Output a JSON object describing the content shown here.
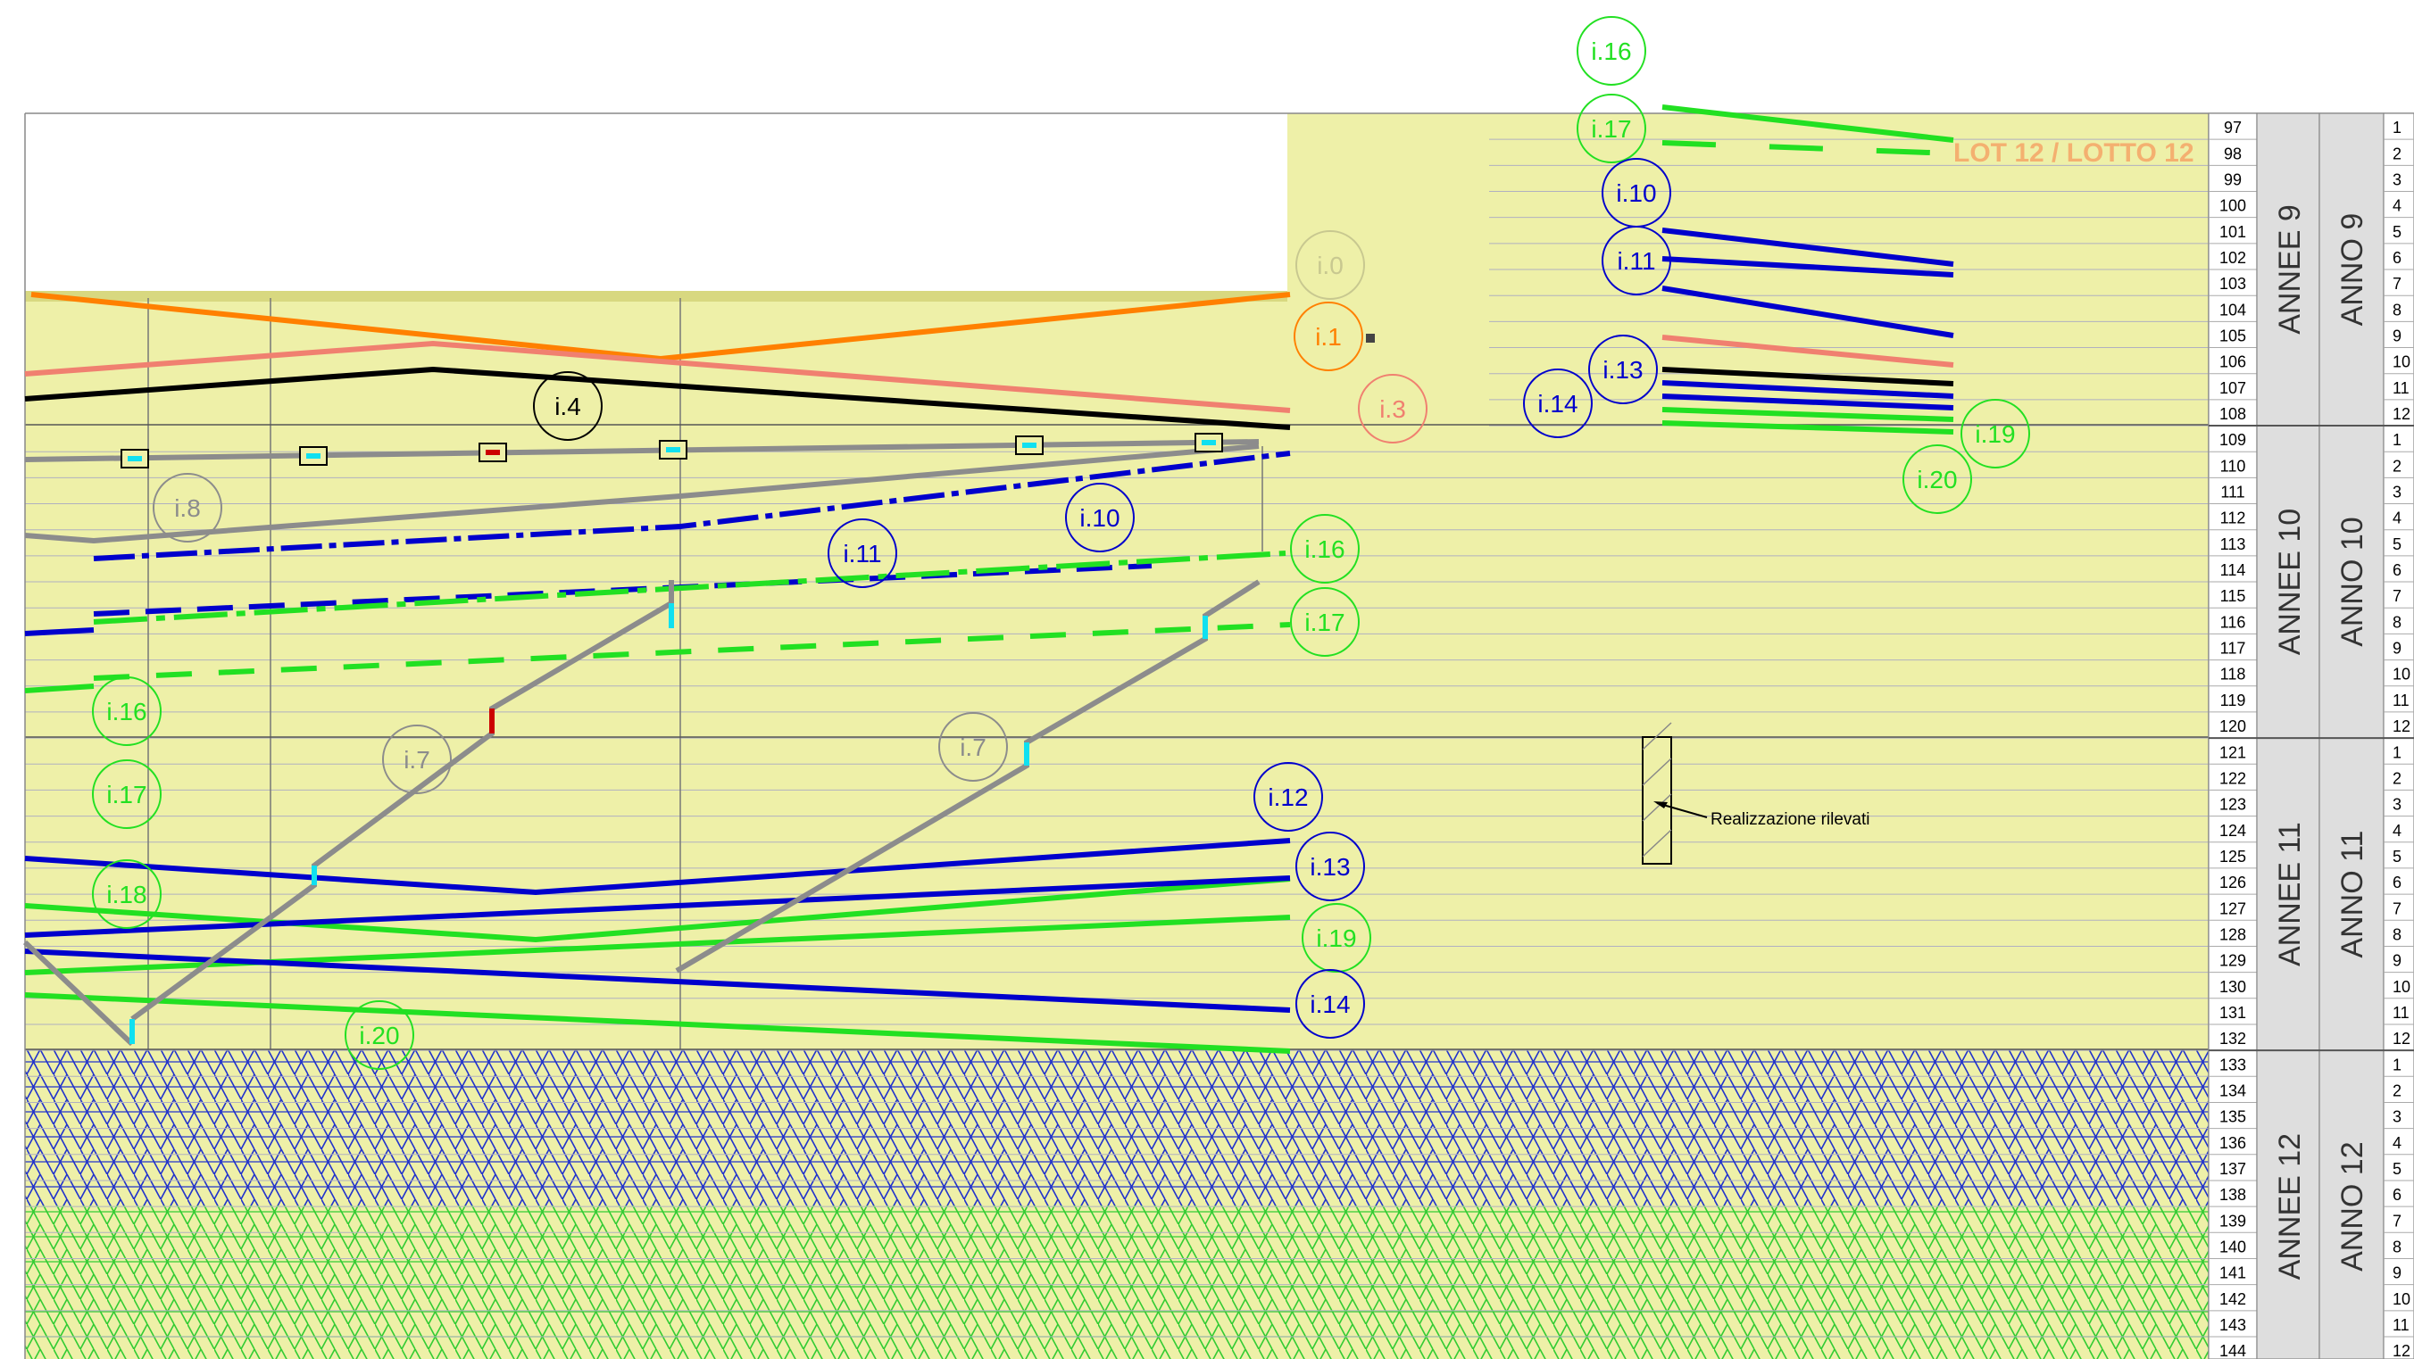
{
  "colors": {
    "background": "#eef0a8",
    "orange": "#ff8000",
    "salmon": "#f08070",
    "black": "#000000",
    "grey": "#8c8c8c",
    "blue": "#0000cc",
    "green": "#22e022",
    "cyan": "#10e0f0",
    "red": "#cc0000",
    "hatch_blue": "#2233cc",
    "hatch_green": "#33cc33"
  },
  "lot_label": "LOT 12 / LOTTO 12",
  "annotation": "Realizzazione rilevati",
  "rows": [
    97,
    98,
    99,
    100,
    101,
    102,
    103,
    104,
    105,
    106,
    107,
    108,
    109,
    110,
    111,
    112,
    113,
    114,
    115,
    116,
    117,
    118,
    119,
    120,
    121,
    122,
    123,
    124,
    125,
    126,
    127,
    128,
    129,
    130,
    131,
    132,
    133,
    134,
    135,
    136,
    137,
    138,
    139,
    140,
    141,
    142,
    143,
    144
  ],
  "months": [
    1,
    2,
    3,
    4,
    5,
    6,
    7,
    8,
    9,
    10,
    11,
    12
  ],
  "years": [
    {
      "annee": "ANNEE 9",
      "anno": "ANNO 9"
    },
    {
      "annee": "ANNEE 10",
      "anno": "ANNO 10"
    },
    {
      "annee": "ANNEE 11",
      "anno": "ANNO 11"
    },
    {
      "annee": "ANNEE 12",
      "anno": "ANNO 12"
    }
  ],
  "labels": {
    "i0": "i.0",
    "i1": "i.1",
    "i3": "i.3",
    "i4": "i.4",
    "i7": "i.7",
    "i8": "i.8",
    "i10": "i.10",
    "i11": "i.11",
    "i12": "i.12",
    "i13": "i.13",
    "i14": "i.14",
    "i16": "i.16",
    "i17": "i.17",
    "i18": "i.18",
    "i19": "i.19",
    "i20": "i.20"
  }
}
